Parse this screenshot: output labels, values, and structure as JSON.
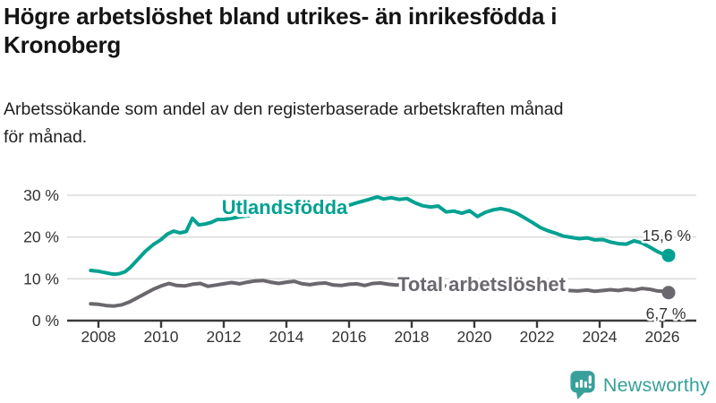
{
  "header": {
    "title_lines": [
      "Högre arbetslöshet bland utrikes- än inrikesfödda i",
      "Kronoberg"
    ],
    "subtitle_lines": [
      "Arbetssökande som andel av den registerbaserade arbetskraften månad",
      "för månad."
    ]
  },
  "footer": {
    "brand": "Newsworthy",
    "logo_icon": "bar-chart-speech-bubble"
  },
  "colors": {
    "series_foreign_born": "#00a191",
    "series_total": "#6b676e",
    "grid": "#dcdcdc",
    "axis": "#3a3a3a",
    "tick_text": "#333333",
    "value_label_text": "#333333",
    "logo_teal": "#38a09a",
    "title_text": "#141414"
  },
  "chart_data": {
    "type": "line",
    "title": "Högre arbetslöshet bland utrikes- än inrikesfödda i Kronoberg",
    "subtitle": "Arbetssökande som andel av den registerbaserade arbetskraften månad för månad.",
    "grid": true,
    "legend_position": "inline-on-line",
    "x_axis": {
      "ticks": [
        2008,
        2010,
        2012,
        2014,
        2016,
        2018,
        2020,
        2022,
        2024,
        2026
      ],
      "range": [
        2007.0,
        2027.1
      ]
    },
    "y_axis": {
      "ticks": [
        0,
        10,
        20,
        30
      ],
      "tick_labels": [
        "0 %",
        "10 %",
        "20 %",
        "30 %"
      ],
      "range": [
        0,
        30
      ],
      "unit": "%"
    },
    "series": [
      {
        "name": "Utlandsfödda",
        "color": "#00a191",
        "end_value": 15.6,
        "end_label": "15,6 %",
        "points": [
          [
            2007.75,
            12.0
          ],
          [
            2008.0,
            11.8
          ],
          [
            2008.2,
            11.5
          ],
          [
            2008.4,
            11.2
          ],
          [
            2008.55,
            11.1
          ],
          [
            2008.7,
            11.3
          ],
          [
            2008.85,
            11.7
          ],
          [
            2009.0,
            12.6
          ],
          [
            2009.25,
            14.6
          ],
          [
            2009.5,
            16.6
          ],
          [
            2009.75,
            18.2
          ],
          [
            2010.0,
            19.4
          ],
          [
            2010.2,
            20.7
          ],
          [
            2010.4,
            21.4
          ],
          [
            2010.6,
            21.0
          ],
          [
            2010.8,
            21.3
          ],
          [
            2011.0,
            24.5
          ],
          [
            2011.2,
            22.9
          ],
          [
            2011.4,
            23.1
          ],
          [
            2011.6,
            23.5
          ],
          [
            2011.8,
            24.2
          ],
          [
            2012.0,
            24.2
          ],
          [
            2012.5,
            24.8
          ],
          [
            2013.0,
            25.3
          ],
          [
            2013.5,
            25.7
          ],
          [
            2014.0,
            26.1
          ],
          [
            2014.5,
            26.5
          ],
          [
            2015.0,
            26.9
          ],
          [
            2015.5,
            27.2
          ],
          [
            2016.0,
            27.6
          ],
          [
            2016.3,
            28.3
          ],
          [
            2016.6,
            28.9
          ],
          [
            2016.9,
            29.6
          ],
          [
            2017.1,
            29.1
          ],
          [
            2017.35,
            29.4
          ],
          [
            2017.6,
            29.0
          ],
          [
            2017.85,
            29.2
          ],
          [
            2018.1,
            28.2
          ],
          [
            2018.35,
            27.5
          ],
          [
            2018.6,
            27.2
          ],
          [
            2018.85,
            27.4
          ],
          [
            2019.1,
            26.0
          ],
          [
            2019.35,
            26.2
          ],
          [
            2019.6,
            25.7
          ],
          [
            2019.85,
            26.3
          ],
          [
            2020.1,
            24.9
          ],
          [
            2020.35,
            25.9
          ],
          [
            2020.6,
            26.5
          ],
          [
            2020.85,
            26.8
          ],
          [
            2021.1,
            26.4
          ],
          [
            2021.35,
            25.7
          ],
          [
            2021.6,
            24.6
          ],
          [
            2021.85,
            23.5
          ],
          [
            2022.1,
            22.3
          ],
          [
            2022.35,
            21.5
          ],
          [
            2022.6,
            20.9
          ],
          [
            2022.85,
            20.2
          ],
          [
            2023.1,
            19.9
          ],
          [
            2023.35,
            19.6
          ],
          [
            2023.6,
            19.8
          ],
          [
            2023.85,
            19.3
          ],
          [
            2024.1,
            19.4
          ],
          [
            2024.35,
            18.8
          ],
          [
            2024.6,
            18.4
          ],
          [
            2024.85,
            18.3
          ],
          [
            2025.1,
            19.1
          ],
          [
            2025.35,
            18.6
          ],
          [
            2025.6,
            17.6
          ],
          [
            2025.85,
            16.5
          ],
          [
            2026.0,
            16.0
          ],
          [
            2026.2,
            15.6
          ]
        ]
      },
      {
        "name": "Total arbetslöshet",
        "color": "#6b676e",
        "end_value": 6.7,
        "end_label": "6,7 %",
        "points": [
          [
            2007.75,
            4.0
          ],
          [
            2008.0,
            3.9
          ],
          [
            2008.25,
            3.6
          ],
          [
            2008.5,
            3.5
          ],
          [
            2008.75,
            3.8
          ],
          [
            2009.0,
            4.5
          ],
          [
            2009.25,
            5.5
          ],
          [
            2009.5,
            6.5
          ],
          [
            2009.75,
            7.5
          ],
          [
            2010.0,
            8.3
          ],
          [
            2010.25,
            8.9
          ],
          [
            2010.5,
            8.4
          ],
          [
            2010.75,
            8.3
          ],
          [
            2011.0,
            8.7
          ],
          [
            2011.25,
            8.9
          ],
          [
            2011.5,
            8.2
          ],
          [
            2011.75,
            8.5
          ],
          [
            2012.0,
            8.8
          ],
          [
            2012.25,
            9.1
          ],
          [
            2012.5,
            8.8
          ],
          [
            2012.75,
            9.2
          ],
          [
            2013.0,
            9.5
          ],
          [
            2013.25,
            9.6
          ],
          [
            2013.5,
            9.2
          ],
          [
            2013.75,
            8.9
          ],
          [
            2014.0,
            9.2
          ],
          [
            2014.25,
            9.4
          ],
          [
            2014.5,
            8.8
          ],
          [
            2014.75,
            8.6
          ],
          [
            2015.0,
            8.9
          ],
          [
            2015.25,
            9.0
          ],
          [
            2015.5,
            8.5
          ],
          [
            2015.75,
            8.4
          ],
          [
            2016.0,
            8.7
          ],
          [
            2016.25,
            8.8
          ],
          [
            2016.5,
            8.4
          ],
          [
            2016.75,
            8.9
          ],
          [
            2017.0,
            9.0
          ],
          [
            2017.25,
            8.7
          ],
          [
            2017.5,
            8.5
          ],
          [
            2017.75,
            8.6
          ],
          [
            2018.0,
            8.4
          ],
          [
            2018.5,
            8.2
          ],
          [
            2019.0,
            8.3
          ],
          [
            2019.5,
            8.0
          ],
          [
            2020.0,
            8.3
          ],
          [
            2020.3,
            9.2
          ],
          [
            2020.6,
            9.0
          ],
          [
            2021.0,
            8.6
          ],
          [
            2021.5,
            8.2
          ],
          [
            2022.0,
            7.8
          ],
          [
            2022.5,
            7.4
          ],
          [
            2023.0,
            7.2
          ],
          [
            2023.3,
            7.1
          ],
          [
            2023.6,
            7.3
          ],
          [
            2023.85,
            7.0
          ],
          [
            2024.1,
            7.2
          ],
          [
            2024.35,
            7.4
          ],
          [
            2024.6,
            7.2
          ],
          [
            2024.85,
            7.5
          ],
          [
            2025.1,
            7.3
          ],
          [
            2025.35,
            7.7
          ],
          [
            2025.6,
            7.5
          ],
          [
            2025.85,
            7.1
          ],
          [
            2026.0,
            7.0
          ],
          [
            2026.2,
            6.7
          ]
        ]
      }
    ]
  }
}
